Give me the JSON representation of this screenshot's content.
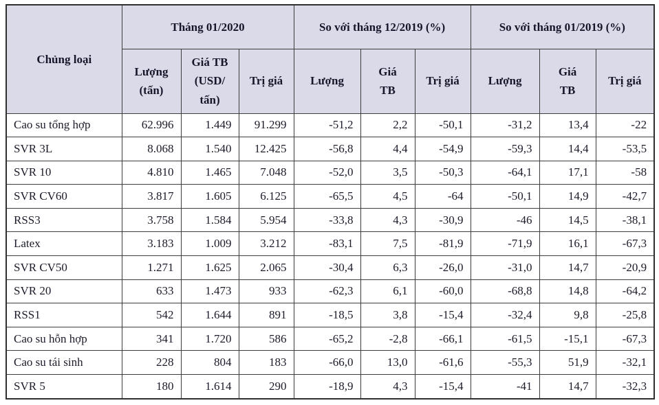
{
  "table": {
    "header": {
      "category_label": "Chủng loại",
      "groups": [
        {
          "label": "Tháng 01/2020",
          "sub": [
            "Lượng (tấn)",
            "Giá TB (USD/ tấn)",
            "Trị giá"
          ]
        },
        {
          "label": "So với tháng 12/2019 (%)",
          "sub": [
            "Lượng",
            "Giá TB",
            "Trị giá"
          ]
        },
        {
          "label": "So với tháng 01/2019 (%)",
          "sub": [
            "Lượng",
            "Giá TB",
            "Trị giá"
          ]
        }
      ]
    },
    "rows": [
      {
        "name": "Cao su tổng hợp",
        "values": [
          "62.996",
          "1.449",
          "91.299",
          "-51,2",
          "2,2",
          "-50,1",
          "-31,2",
          "13,4",
          "-22"
        ]
      },
      {
        "name": "SVR 3L",
        "values": [
          "8.068",
          "1.540",
          "12.425",
          "-56,8",
          "4,4",
          "-54,9",
          "-59,3",
          "14,4",
          "-53,5"
        ]
      },
      {
        "name": "SVR 10",
        "values": [
          "4.810",
          "1.465",
          "7.048",
          "-52,0",
          "3,5",
          "-50,3",
          "-64,1",
          "17,1",
          "-58"
        ]
      },
      {
        "name": "SVR CV60",
        "values": [
          "3.817",
          "1.605",
          "6.125",
          "-65,5",
          "4,5",
          "-64",
          "-50,1",
          "14,9",
          "-42,7"
        ]
      },
      {
        "name": "RSS3",
        "values": [
          "3.758",
          "1.584",
          "5.954",
          "-33,8",
          "4,3",
          "-30,9",
          "-46",
          "14,5",
          "-38,1"
        ]
      },
      {
        "name": "Latex",
        "values": [
          "3.183",
          "1.009",
          "3.212",
          "-83,1",
          "7,5",
          "-81,9",
          "-71,9",
          "16,1",
          "-67,3"
        ]
      },
      {
        "name": "SVR CV50",
        "values": [
          "1.271",
          "1.625",
          "2.065",
          "-30,4",
          "6,3",
          "-26,0",
          "-31,0",
          "14,7",
          "-20,9"
        ]
      },
      {
        "name": "SVR 20",
        "values": [
          "633",
          "1.473",
          "933",
          "-62,3",
          "6,1",
          "-60,0",
          "-68,8",
          "14,8",
          "-64,2"
        ]
      },
      {
        "name": "RSS1",
        "values": [
          "542",
          "1.644",
          "891",
          "-18,5",
          "3,8",
          "-15,4",
          "-32,4",
          "9,8",
          "-25,8"
        ]
      },
      {
        "name": "Cao su hỗn hợp",
        "values": [
          "341",
          "1.720",
          "586",
          "-65,2",
          "-2,8",
          "-66,1",
          "-61,5",
          "-15,1",
          "-67,3"
        ]
      },
      {
        "name": "Cao su tái sinh",
        "values": [
          "228",
          "804",
          "183",
          "-66,0",
          "13,0",
          "-61,6",
          "-55,3",
          "51,9",
          "-32,1"
        ]
      },
      {
        "name": "SVR 5",
        "values": [
          "180",
          "1.614",
          "290",
          "-18,9",
          "4,3",
          "-15,4",
          "-41",
          "14,7",
          "-32,3"
        ]
      }
    ]
  },
  "colors": {
    "header_background": "#dbdae8",
    "border": "#3c3c3c",
    "text": "#1b1b2a",
    "row_background": "#ffffff"
  }
}
